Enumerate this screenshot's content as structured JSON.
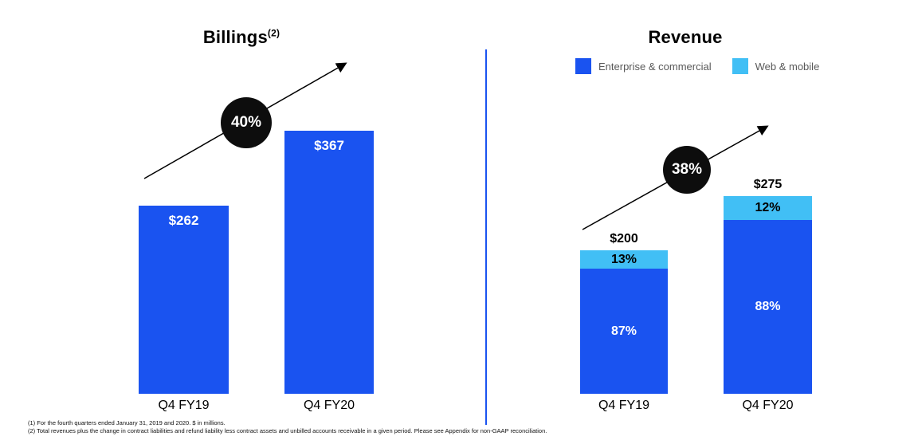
{
  "footnotes": [
    "(1) For the fourth quarters ended January 31, 2019 and 2020. $ in millions.",
    "(2) Total revenues plus the change in contract liabilities and refund liability less contract assets and unbilled accounts receivable in a given period. Please see Appendix for non-GAAP reconciliation."
  ],
  "divider_color": "#1a53f0",
  "annotation_circle_color": "#0d0d0d",
  "chart_data": [
    {
      "type": "bar",
      "title": "Billings",
      "title_footnote_ref": "(2)",
      "growth_annotation": "40%",
      "categories": [
        "Q4 FY19",
        "Q4 FY20"
      ],
      "values": [
        262,
        367
      ],
      "value_labels": [
        "$262",
        "$367"
      ],
      "bar_color": "#1a53f0",
      "unit": "$ in millions",
      "legend_position": "none",
      "grid": false
    },
    {
      "type": "stacked-bar",
      "title": "Revenue",
      "growth_annotation": "38%",
      "categories": [
        "Q4 FY19",
        "Q4 FY20"
      ],
      "totals": [
        200,
        275
      ],
      "total_labels": [
        "$200",
        "$275"
      ],
      "series": [
        {
          "name": "Enterprise & commercial",
          "color": "#1a53f0",
          "pct": [
            87,
            88
          ],
          "pct_labels": [
            "87%",
            "88%"
          ]
        },
        {
          "name": "Web & mobile",
          "color": "#41bff5",
          "pct": [
            13,
            12
          ],
          "pct_labels": [
            "13%",
            "12%"
          ]
        }
      ],
      "unit": "$ in millions",
      "legend_position": "top-right",
      "grid": false
    }
  ]
}
